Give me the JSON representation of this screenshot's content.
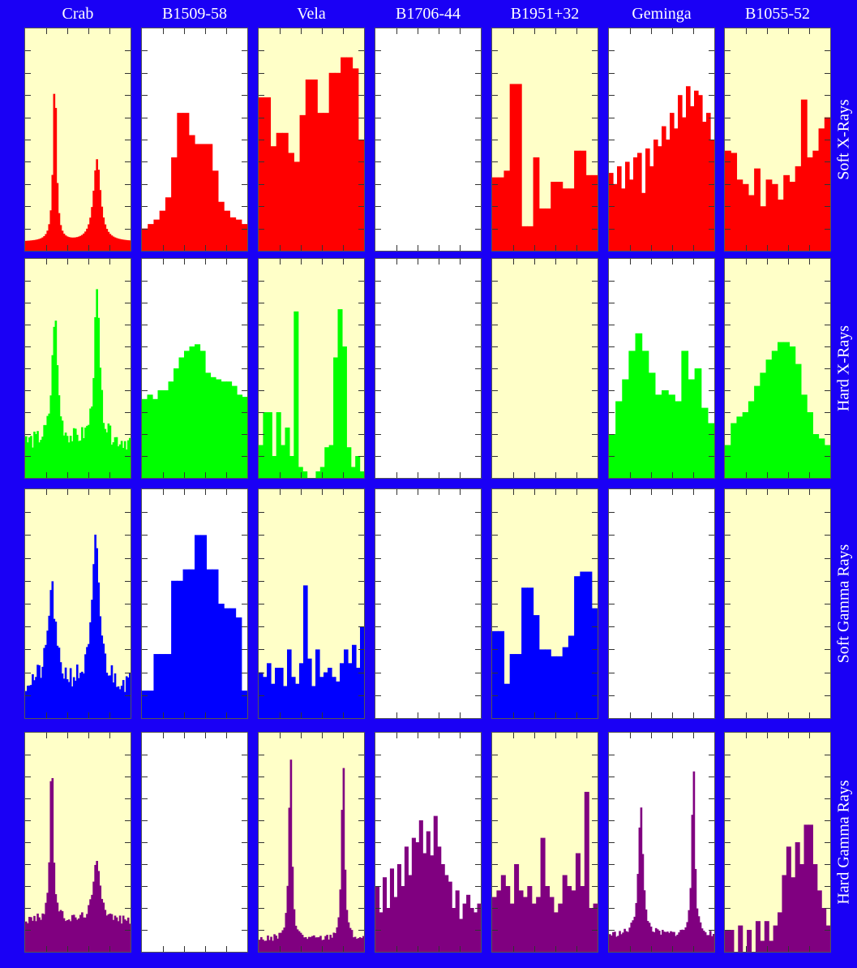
{
  "figure": {
    "columns": [
      "Crab",
      "B1509-58",
      "Vela",
      "B1706-44",
      "B1951+32",
      "Geminga",
      "B1055-52"
    ],
    "rows": [
      "Soft X-Rays",
      "Hard X-Rays",
      "Soft Gamma Rays",
      "Hard Gamma Rays"
    ]
  },
  "colors": {
    "background": "#1a00f5",
    "panel_yellow": "#ffffc8",
    "panel_white": "#ffffff",
    "Soft X-Rays": "#ff0000",
    "Hard X-Rays": "#00ff00",
    "Soft Gamma Rays": "#0000ff",
    "Hard Gamma Rays": "#800080"
  },
  "chart_data": {
    "type": "bar",
    "x_axis": "pulse phase (not labelled)",
    "ylim": [
      0,
      1
    ],
    "panels": [
      {
        "row": "Soft X-Rays",
        "column": "Crab",
        "bg": "yellow",
        "profile": "peaks",
        "peaks": [
          [
            0.28,
            0.75,
            0.018
          ],
          [
            0.68,
            0.37,
            0.04
          ]
        ],
        "base": 0.04
      },
      {
        "row": "Soft X-Rays",
        "column": "B1509-58",
        "bg": "white",
        "values": [
          0.1,
          0.12,
          0.14,
          0.18,
          0.24,
          0.42,
          0.62,
          0.62,
          0.52,
          0.48,
          0.48,
          0.48,
          0.36,
          0.22,
          0.18,
          0.15,
          0.14,
          0.12
        ]
      },
      {
        "row": "Soft X-Rays",
        "column": "Vela",
        "bg": "yellow",
        "values": [
          0.69,
          0.69,
          0.47,
          0.53,
          0.53,
          0.44,
          0.4,
          0.61,
          0.77,
          0.77,
          0.62,
          0.62,
          0.8,
          0.8,
          0.87,
          0.87,
          0.82,
          0.5
        ]
      },
      {
        "row": "Soft X-Rays",
        "column": "B1706-44",
        "bg": "white",
        "values": []
      },
      {
        "row": "Soft X-Rays",
        "column": "B1951+32",
        "bg": "yellow",
        "values": [
          0.33,
          0.33,
          0.36,
          0.75,
          0.75,
          0.11,
          0.11,
          0.42,
          0.19,
          0.19,
          0.31,
          0.31,
          0.28,
          0.28,
          0.45,
          0.45,
          0.34,
          0.34
        ]
      },
      {
        "row": "Soft X-Rays",
        "column": "Geminga",
        "bg": "white",
        "values": [
          0.35,
          0.3,
          0.38,
          0.28,
          0.4,
          0.32,
          0.42,
          0.44,
          0.26,
          0.46,
          0.38,
          0.5,
          0.47,
          0.56,
          0.5,
          0.62,
          0.55,
          0.7,
          0.6,
          0.74,
          0.65,
          0.72,
          0.7,
          0.58,
          0.62,
          0.5
        ]
      },
      {
        "row": "Soft X-Rays",
        "column": "B1055-52",
        "bg": "yellow",
        "values": [
          0.45,
          0.44,
          0.32,
          0.3,
          0.25,
          0.37,
          0.2,
          0.32,
          0.3,
          0.23,
          0.34,
          0.31,
          0.38,
          0.68,
          0.42,
          0.45,
          0.55,
          0.6
        ]
      },
      {
        "row": "Hard X-Rays",
        "column": "Crab",
        "bg": "yellow",
        "profile": "peaks",
        "peaks": [
          [
            0.28,
            0.58,
            0.03
          ],
          [
            0.68,
            0.68,
            0.03
          ]
        ],
        "base": 0.12,
        "noise": 0.08
      },
      {
        "row": "Hard X-Rays",
        "column": "B1509-58",
        "bg": "white",
        "values": [
          0.36,
          0.38,
          0.36,
          0.4,
          0.4,
          0.44,
          0.5,
          0.55,
          0.58,
          0.6,
          0.61,
          0.58,
          0.48,
          0.46,
          0.45,
          0.44,
          0.44,
          0.42,
          0.38,
          0.37
        ]
      },
      {
        "row": "Hard X-Rays",
        "column": "Vela",
        "bg": "yellow",
        "values": [
          0.15,
          0.3,
          0.3,
          0.1,
          0.3,
          0.15,
          0.23,
          0.1,
          0.76,
          0.05,
          0.03,
          0.0,
          0.0,
          0.03,
          0.05,
          0.14,
          0.15,
          0.55,
          0.77,
          0.6,
          0.14,
          0.05,
          0.1,
          0.03
        ]
      },
      {
        "row": "Hard X-Rays",
        "column": "B1706-44",
        "bg": "white",
        "values": []
      },
      {
        "row": "Hard X-Rays",
        "column": "B1951+32",
        "bg": "yellow",
        "values": []
      },
      {
        "row": "Hard X-Rays",
        "column": "Geminga",
        "bg": "white",
        "values": [
          0.2,
          0.35,
          0.45,
          0.58,
          0.66,
          0.58,
          0.48,
          0.38,
          0.4,
          0.38,
          0.35,
          0.58,
          0.45,
          0.5,
          0.32,
          0.25
        ]
      },
      {
        "row": "Hard X-Rays",
        "column": "B1055-52",
        "bg": "yellow",
        "values": [
          0.15,
          0.25,
          0.28,
          0.3,
          0.35,
          0.42,
          0.48,
          0.54,
          0.58,
          0.62,
          0.62,
          0.6,
          0.52,
          0.38,
          0.3,
          0.2,
          0.18,
          0.15
        ]
      },
      {
        "row": "Soft Gamma Rays",
        "column": "Crab",
        "bg": "yellow",
        "profile": "peaks",
        "peaks": [
          [
            0.25,
            0.42,
            0.04
          ],
          [
            0.67,
            0.62,
            0.04
          ]
        ],
        "base": 0.1,
        "noise": 0.1
      },
      {
        "row": "Soft Gamma Rays",
        "column": "B1509-58",
        "bg": "white",
        "values": [
          0.12,
          0.12,
          0.28,
          0.28,
          0.28,
          0.6,
          0.6,
          0.65,
          0.65,
          0.8,
          0.8,
          0.65,
          0.65,
          0.5,
          0.48,
          0.48,
          0.44,
          0.12
        ]
      },
      {
        "row": "Soft Gamma Rays",
        "column": "Vela",
        "bg": "yellow",
        "values": [
          0.2,
          0.18,
          0.24,
          0.15,
          0.22,
          0.22,
          0.14,
          0.3,
          0.18,
          0.15,
          0.24,
          0.58,
          0.26,
          0.14,
          0.3,
          0.18,
          0.2,
          0.22,
          0.18,
          0.16,
          0.24,
          0.3,
          0.24,
          0.32,
          0.22,
          0.4
        ]
      },
      {
        "row": "Soft Gamma Rays",
        "column": "B1706-44",
        "bg": "white",
        "values": []
      },
      {
        "row": "Soft Gamma Rays",
        "column": "B1951+32",
        "bg": "yellow",
        "values": [
          0.38,
          0.38,
          0.15,
          0.28,
          0.28,
          0.57,
          0.57,
          0.45,
          0.3,
          0.3,
          0.27,
          0.27,
          0.31,
          0.36,
          0.62,
          0.64,
          0.64,
          0.48
        ]
      },
      {
        "row": "Soft Gamma Rays",
        "column": "Geminga",
        "bg": "white",
        "values": []
      },
      {
        "row": "Soft Gamma Rays",
        "column": "B1055-52",
        "bg": "yellow",
        "values": []
      },
      {
        "row": "Hard Gamma Rays",
        "column": "Crab",
        "bg": "yellow",
        "profile": "peaks",
        "peaks": [
          [
            0.25,
            0.75,
            0.018
          ],
          [
            0.68,
            0.28,
            0.04
          ]
        ],
        "base": 0.12,
        "noise": 0.04
      },
      {
        "row": "Hard Gamma Rays",
        "column": "B1509-58",
        "bg": "white",
        "values": []
      },
      {
        "row": "Hard Gamma Rays",
        "column": "Vela",
        "bg": "yellow",
        "profile": "peaks",
        "peaks": [
          [
            0.3,
            0.88,
            0.016
          ],
          [
            0.8,
            0.85,
            0.016
          ]
        ],
        "base": 0.04,
        "noise": 0.03
      },
      {
        "row": "Hard Gamma Rays",
        "column": "B1706-44",
        "bg": "white",
        "values": [
          0.3,
          0.18,
          0.34,
          0.2,
          0.38,
          0.25,
          0.4,
          0.3,
          0.48,
          0.35,
          0.52,
          0.5,
          0.6,
          0.45,
          0.55,
          0.44,
          0.62,
          0.48,
          0.4,
          0.35,
          0.32,
          0.2,
          0.28,
          0.15,
          0.22,
          0.26,
          0.2,
          0.18,
          0.22
        ]
      },
      {
        "row": "Hard Gamma Rays",
        "column": "B1951+32",
        "bg": "yellow",
        "values": [
          0.25,
          0.28,
          0.35,
          0.3,
          0.22,
          0.4,
          0.28,
          0.25,
          0.3,
          0.22,
          0.25,
          0.52,
          0.3,
          0.25,
          0.18,
          0.22,
          0.35,
          0.3,
          0.28,
          0.45,
          0.3,
          0.73,
          0.2,
          0.22
        ]
      },
      {
        "row": "Hard Gamma Rays",
        "column": "Geminga",
        "bg": "white",
        "profile": "peaks",
        "peaks": [
          [
            0.3,
            0.6,
            0.025
          ],
          [
            0.8,
            0.82,
            0.016
          ]
        ],
        "base": 0.06,
        "noise": 0.03
      },
      {
        "row": "Hard Gamma Rays",
        "column": "B1055-52",
        "bg": "yellow",
        "values": [
          0.1,
          0.1,
          0.0,
          0.12,
          0.0,
          0.1,
          0.0,
          0.14,
          0.05,
          0.14,
          0.05,
          0.12,
          0.18,
          0.35,
          0.48,
          0.34,
          0.5,
          0.4,
          0.58,
          0.58,
          0.4,
          0.28,
          0.2,
          0.12
        ]
      }
    ]
  }
}
